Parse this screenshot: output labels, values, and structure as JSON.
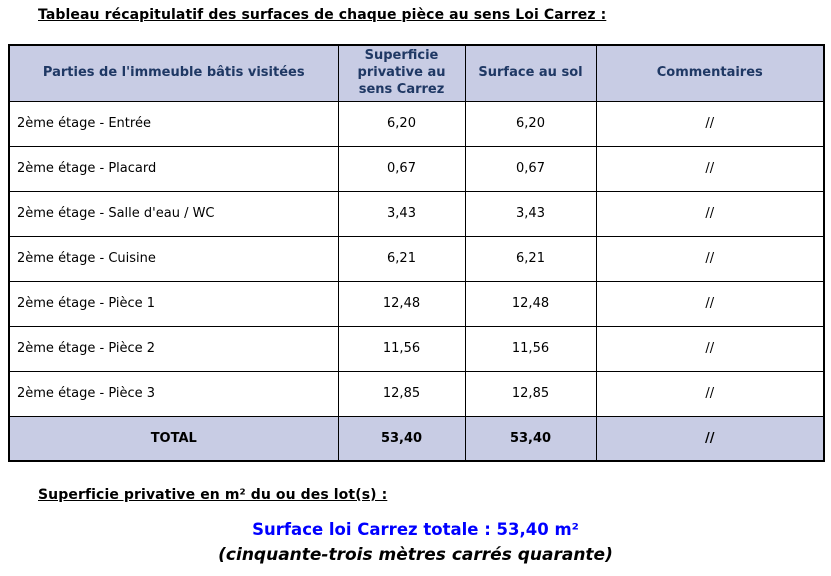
{
  "document": {
    "title": "Tableau récapitulatif des surfaces de chaque pièce au sens Loi Carrez :",
    "table": {
      "headers": [
        "Parties de l'immeuble bâtis visitées",
        "Superficie privative au sens Carrez",
        "Surface au sol",
        "Commentaires"
      ],
      "rows": [
        {
          "part": "2ème étage - Entrée",
          "carrez": "6,20",
          "floor": "6,20",
          "comment": "//"
        },
        {
          "part": "2ème étage - Placard",
          "carrez": "0,67",
          "floor": "0,67",
          "comment": "//"
        },
        {
          "part": "2ème étage - Salle d'eau / WC",
          "carrez": "3,43",
          "floor": "3,43",
          "comment": "//"
        },
        {
          "part": "2ème étage - Cuisine",
          "carrez": "6,21",
          "floor": "6,21",
          "comment": "//"
        },
        {
          "part": "2ème étage - Pièce 1",
          "carrez": "12,48",
          "floor": "12,48",
          "comment": "//"
        },
        {
          "part": "2ème étage - Pièce 2",
          "carrez": "11,56",
          "floor": "11,56",
          "comment": "//"
        },
        {
          "part": "2ème étage - Pièce 3",
          "carrez": "12,85",
          "floor": "12,85",
          "comment": "//"
        }
      ],
      "total": {
        "label": "TOTAL",
        "carrez": "53,40",
        "floor": "53,40",
        "comment": "//"
      }
    },
    "footer": {
      "subtitle": "Superficie privative en m² du ou des lot(s) :",
      "total_line": "Surface loi Carrez totale : 53,40 m²",
      "words_line": "(cinquante-trois mètres carrés quarante)"
    },
    "colors": {
      "header_bg": "#C8CCE4",
      "header_text": "#1F3864",
      "accent_blue": "#0000FF",
      "border": "#000000"
    }
  }
}
